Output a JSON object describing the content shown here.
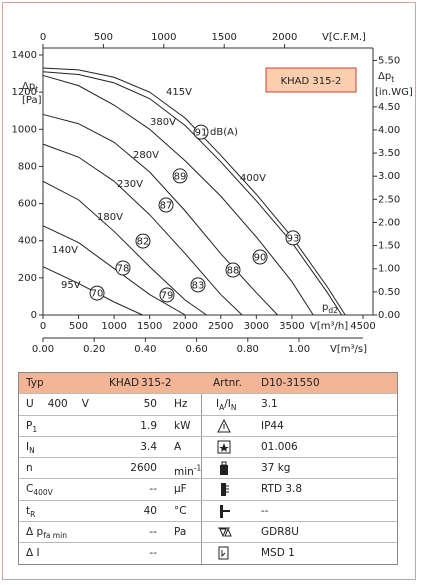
{
  "chart_data": {
    "type": "line",
    "title": "KHAD 315-2",
    "x_top_label": "V[C.F.M.]",
    "x_label": "V[m³/h]",
    "x2_label": "V[m³/s]",
    "y_label": {
      "t": "Δp",
      "sub": "t"
    },
    "y_unit": "[Pa]",
    "y2_label": {
      "t": "Δp",
      "sub": "t"
    },
    "y2_unit": "[in.WG]",
    "xlim": [
      0,
      4500
    ],
    "xticks": [
      0,
      500,
      1000,
      1500,
      2000,
      2500,
      3000,
      3500,
      4500
    ],
    "x_top_lim": [
      0,
      2649
    ],
    "x_top_ticks": [
      0,
      500,
      1000,
      1500,
      2000
    ],
    "x2lim": [
      0,
      1.25
    ],
    "x2ticks": [
      {
        "value": 0,
        "label": "0.00"
      },
      {
        "value": 0.2,
        "label": "0.20"
      },
      {
        "value": 0.4,
        "label": "0.40"
      },
      {
        "value": 0.6,
        "label": "0.60"
      },
      {
        "value": 0.8,
        "label": "0.80"
      },
      {
        "value": 1,
        "label": "1.00"
      }
    ],
    "ylim": [
      0,
      1400
    ],
    "yticks": [
      0,
      200,
      400,
      600,
      800,
      1000,
      1200,
      1400
    ],
    "y2lim": [
      0,
      5.62
    ],
    "y2ticks": [
      {
        "value": 0,
        "label": "0.00"
      },
      {
        "value": 0.5,
        "label": "0.50"
      },
      {
        "value": 1,
        "label": "1.00"
      },
      {
        "value": 1.5,
        "label": "1.50"
      },
      {
        "value": 2,
        "label": "2.00"
      },
      {
        "value": 2.5,
        "label": "2.50"
      },
      {
        "value": 3,
        "label": "3.00"
      },
      {
        "value": 3.5,
        "label": "3.50"
      },
      {
        "value": 4,
        "label": "4.00"
      },
      {
        "value": 4.5,
        "label": "4.50"
      },
      {
        "value": 5.5,
        "label": "5.50"
      }
    ],
    "series": [
      {
        "name": "415V",
        "color": "#222222",
        "x": [
          0,
          500,
          1000,
          1500,
          2000,
          2500,
          3000,
          3500,
          4000,
          4250
        ],
        "values": [
          1330,
          1320,
          1280,
          1200,
          1060,
          860,
          650,
          420,
          150,
          0
        ]
      },
      {
        "name": "400V",
        "color": "#222222",
        "x": [
          0,
          500,
          1000,
          1500,
          2000,
          2500,
          3000,
          3500,
          4000,
          4200
        ],
        "values": [
          1310,
          1295,
          1250,
          1165,
          1020,
          825,
          615,
          390,
          120,
          0
        ]
      },
      {
        "name": "380V",
        "color": "#222222",
        "x": [
          0,
          500,
          1000,
          1500,
          2000,
          2500,
          3000,
          3500,
          3800
        ],
        "values": [
          1290,
          1235,
          1130,
          1000,
          830,
          640,
          420,
          180,
          0
        ]
      },
      {
        "name": "280V",
        "color": "#222222",
        "x": [
          0,
          500,
          1000,
          1500,
          2000,
          2500,
          3000,
          3300
        ],
        "values": [
          1080,
          1030,
          930,
          770,
          560,
          330,
          120,
          0
        ]
      },
      {
        "name": "230V",
        "color": "#222222",
        "x": [
          0,
          500,
          1000,
          1500,
          2000,
          2500,
          2800
        ],
        "values": [
          920,
          850,
          720,
          540,
          330,
          110,
          0
        ]
      },
      {
        "name": "180V",
        "color": "#222222",
        "x": [
          0,
          500,
          1000,
          1500,
          2000,
          2300
        ],
        "values": [
          720,
          620,
          450,
          260,
          80,
          0
        ]
      },
      {
        "name": "140V",
        "color": "#222222",
        "x": [
          0,
          500,
          1000,
          1500,
          2000
        ],
        "values": [
          480,
          390,
          250,
          110,
          0
        ]
      },
      {
        "name": "95V",
        "color": "#222222",
        "x": [
          0,
          500,
          1000,
          1400
        ],
        "values": [
          260,
          170,
          70,
          0
        ]
      }
    ],
    "db_labels": [
      {
        "value": 70,
        "x": 760,
        "y": 118
      },
      {
        "value": 78,
        "x": 1125,
        "y": 253
      },
      {
        "value": 82,
        "x": 1406,
        "y": 398
      },
      {
        "value": 87,
        "x": 1730,
        "y": 592
      },
      {
        "value": 89,
        "x": 1927,
        "y": 749
      },
      {
        "value": 91,
        "x": 2222,
        "y": 985
      },
      {
        "value": 79,
        "x": 1744,
        "y": 108
      },
      {
        "value": 83,
        "x": 2180,
        "y": 162
      },
      {
        "value": 88,
        "x": 2672,
        "y": 242
      },
      {
        "value": 90,
        "x": 3052,
        "y": 312
      },
      {
        "value": 93,
        "x": 3516,
        "y": 415
      }
    ],
    "db_unit": "dB(A)",
    "pd2": {
      "t": "p",
      "sub": "d2",
      "x": 3924,
      "y": 43
    }
  },
  "table": {
    "header": [
      "Typ",
      "KHAD",
      "315-2",
      "Artnr.",
      "D10-31550"
    ],
    "rows": [
      {
        "label": [
          "U",
          "400",
          "V"
        ],
        "value": 50,
        "unit": "Hz",
        "right_label": [
          {
            "t": "I",
            "sub": "A"
          },
          "/",
          {
            "t": "I",
            "sub": "N"
          }
        ],
        "right_value": 3.1
      },
      {
        "label": [
          {
            "t": "P",
            "sub": "1"
          }
        ],
        "value": 1.9,
        "unit": "kW",
        "right_value": "IP44"
      },
      {
        "label": [
          {
            "t": "I",
            "sub": "N"
          }
        ],
        "value": 3.4,
        "unit": "A",
        "right_value": "01.006"
      },
      {
        "label": [
          "n"
        ],
        "value": 2600,
        "unit": {
          "t": "min",
          "sup": "-1"
        },
        "right_value": "37 kg"
      },
      {
        "label": [
          {
            "t": "C",
            "sub": "400V"
          }
        ],
        "value": "--",
        "unit": "µF",
        "right_value": "RTD 3.8"
      },
      {
        "label": [
          {
            "t": "t",
            "sub": "R"
          }
        ],
        "value": 40,
        "unit": "°C",
        "right_value": "--"
      },
      {
        "label": [
          {
            "t": "Δ p",
            "sub": "fa min"
          }
        ],
        "value": "--",
        "unit": "Pa",
        "right_value": "GDR8U"
      },
      {
        "label": [
          "Δ I"
        ],
        "value": "--",
        "right_value": "MSD 1"
      }
    ]
  }
}
